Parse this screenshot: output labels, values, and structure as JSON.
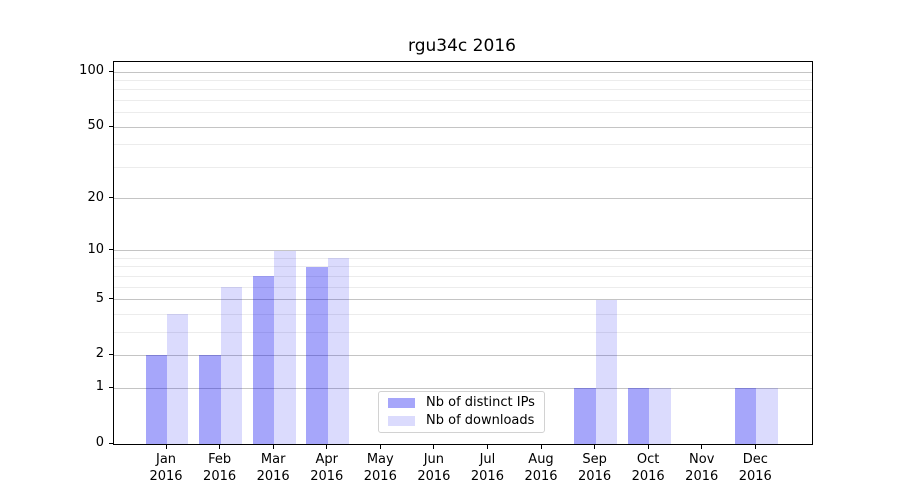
{
  "chart_data": {
    "type": "bar",
    "title": "rgu34c 2016",
    "xlabel": "",
    "ylabel": "",
    "categories": [
      "Jan",
      "Feb",
      "Mar",
      "Apr",
      "May",
      "Jun",
      "Jul",
      "Aug",
      "Sep",
      "Oct",
      "Nov",
      "Dec"
    ],
    "year_line": "2016",
    "series": [
      {
        "name": "Nb of distinct IPs",
        "color": "rgba(0,0,240,0.35)",
        "values": [
          2,
          2,
          7,
          8,
          0,
          0,
          0,
          0,
          1,
          1,
          0,
          1
        ]
      },
      {
        "name": "Nb of downloads",
        "color": "rgba(0,0,240,0.14)",
        "values": [
          4,
          6,
          10,
          9,
          0,
          0,
          0,
          0,
          5,
          1,
          0,
          1
        ]
      }
    ],
    "yscale": "log1p",
    "ylim": [
      0,
      114
    ],
    "y_ticks": [
      100,
      50,
      20,
      10,
      5,
      2,
      1,
      0
    ],
    "y_minor_gridlines": [
      3,
      4,
      6,
      7,
      8,
      9,
      30,
      40,
      60,
      70,
      80,
      90
    ],
    "grid": {
      "major_color": "#c4c4c4",
      "minor_color": "#ececec",
      "visible": true
    },
    "legend": {
      "position": "lower center"
    }
  }
}
